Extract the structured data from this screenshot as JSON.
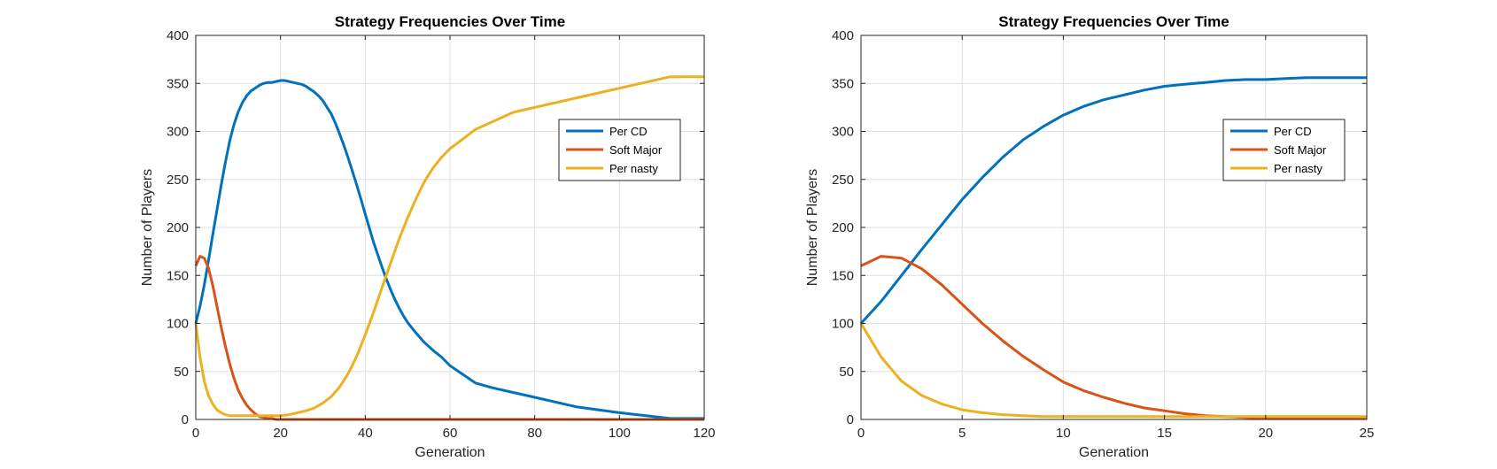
{
  "chart_data": [
    {
      "type": "line",
      "title": "Strategy Frequencies Over Time",
      "xlabel": "Generation",
      "ylabel": "Number of Players",
      "xlim": [
        0,
        120
      ],
      "ylim": [
        0,
        400
      ],
      "xticks": [
        0,
        20,
        40,
        60,
        80,
        100,
        120
      ],
      "yticks": [
        0,
        50,
        100,
        150,
        200,
        250,
        300,
        350,
        400
      ],
      "grid": true,
      "legend_position": "top-right",
      "series": [
        {
          "name": "Per CD",
          "color": "#0072BD",
          "x": [
            0,
            1,
            2,
            3,
            4,
            5,
            6,
            7,
            8,
            9,
            10,
            11,
            12,
            13,
            14,
            15,
            16,
            17,
            18,
            19,
            20,
            21,
            22,
            23,
            24,
            25,
            26,
            27,
            28,
            29,
            30,
            31,
            32,
            33,
            34,
            35,
            36,
            37,
            38,
            39,
            40,
            41,
            42,
            43,
            44,
            45,
            46,
            47,
            48,
            49,
            50,
            52,
            54,
            56,
            58,
            60,
            63,
            66,
            70,
            75,
            80,
            90,
            100,
            112,
            120
          ],
          "y": [
            100,
            118,
            140,
            165,
            192,
            218,
            244,
            268,
            290,
            307,
            320,
            330,
            337,
            342,
            345,
            348,
            350,
            351,
            351,
            352,
            353,
            353,
            352,
            351,
            350,
            349,
            347,
            344,
            341,
            337,
            332,
            325,
            318,
            308,
            297,
            285,
            272,
            258,
            244,
            229,
            214,
            199,
            184,
            171,
            158,
            146,
            135,
            125,
            116,
            108,
            101,
            90,
            80,
            72,
            65,
            56,
            47,
            38,
            33,
            28,
            23,
            13,
            7,
            1,
            1
          ]
        },
        {
          "name": "Soft Major",
          "color": "#D95319",
          "x": [
            0,
            1,
            2,
            3,
            4,
            5,
            6,
            7,
            8,
            9,
            10,
            11,
            12,
            13,
            14,
            15,
            16,
            17,
            18,
            19,
            20,
            22,
            25,
            30,
            40,
            60,
            80,
            100,
            120
          ],
          "y": [
            160,
            170,
            168,
            158,
            140,
            118,
            96,
            76,
            58,
            43,
            31,
            22,
            15,
            10,
            6,
            3,
            2,
            1,
            1,
            0,
            0,
            0,
            0,
            0,
            0,
            0,
            0,
            0,
            0
          ]
        },
        {
          "name": "Per nasty",
          "color": "#EDB120",
          "x": [
            0,
            1,
            2,
            3,
            4,
            5,
            6,
            7,
            8,
            9,
            10,
            12,
            14,
            16,
            18,
            20,
            22,
            24,
            26,
            28,
            30,
            32,
            34,
            36,
            38,
            40,
            42,
            44,
            46,
            48,
            50,
            52,
            54,
            56,
            58,
            60,
            63,
            66,
            70,
            75,
            80,
            90,
            100,
            112,
            120
          ],
          "y": [
            100,
            65,
            40,
            25,
            16,
            10,
            7,
            5,
            4,
            4,
            4,
            4,
            4,
            4,
            4,
            4,
            5,
            7,
            9,
            12,
            17,
            24,
            34,
            48,
            66,
            88,
            112,
            138,
            163,
            188,
            210,
            230,
            248,
            262,
            273,
            282,
            292,
            302,
            310,
            320,
            325,
            335,
            345,
            357,
            357
          ]
        }
      ]
    },
    {
      "type": "line",
      "title": "Strategy Frequencies Over Time",
      "xlabel": "Generation",
      "ylabel": "Number of Players",
      "xlim": [
        0,
        25
      ],
      "ylim": [
        0,
        400
      ],
      "xticks": [
        0,
        5,
        10,
        15,
        20,
        25
      ],
      "yticks": [
        0,
        50,
        100,
        150,
        200,
        250,
        300,
        350,
        400
      ],
      "grid": true,
      "legend_position": "top-right",
      "series": [
        {
          "name": "Per CD",
          "color": "#0072BD",
          "x": [
            0,
            1,
            2,
            3,
            4,
            5,
            6,
            7,
            8,
            9,
            10,
            11,
            12,
            13,
            14,
            15,
            16,
            17,
            18,
            19,
            20,
            21,
            22,
            23,
            24,
            25
          ],
          "y": [
            100,
            123,
            150,
            177,
            203,
            229,
            252,
            273,
            291,
            305,
            317,
            326,
            333,
            338,
            343,
            347,
            349,
            351,
            353,
            354,
            354,
            355,
            356,
            356,
            356,
            356
          ]
        },
        {
          "name": "Soft Major",
          "color": "#D95319",
          "x": [
            0,
            1,
            2,
            3,
            4,
            5,
            6,
            7,
            8,
            9,
            10,
            11,
            12,
            13,
            14,
            15,
            16,
            17,
            18,
            19,
            20,
            21,
            22,
            23,
            24,
            25
          ],
          "y": [
            160,
            170,
            168,
            157,
            140,
            120,
            100,
            82,
            66,
            52,
            39,
            30,
            23,
            17,
            12,
            9,
            6,
            4,
            3,
            2,
            1,
            1,
            1,
            1,
            1,
            1
          ]
        },
        {
          "name": "Per nasty",
          "color": "#EDB120",
          "x": [
            0,
            1,
            2,
            3,
            4,
            5,
            6,
            7,
            8,
            9,
            10,
            11,
            12,
            13,
            14,
            15,
            16,
            17,
            18,
            19,
            20,
            21,
            22,
            23,
            24,
            25
          ],
          "y": [
            100,
            65,
            40,
            25,
            16,
            10,
            7,
            5,
            4,
            3,
            3,
            3,
            3,
            3,
            3,
            3,
            3,
            3,
            3,
            3,
            3,
            3,
            3,
            3,
            3,
            3
          ]
        }
      ]
    }
  ]
}
